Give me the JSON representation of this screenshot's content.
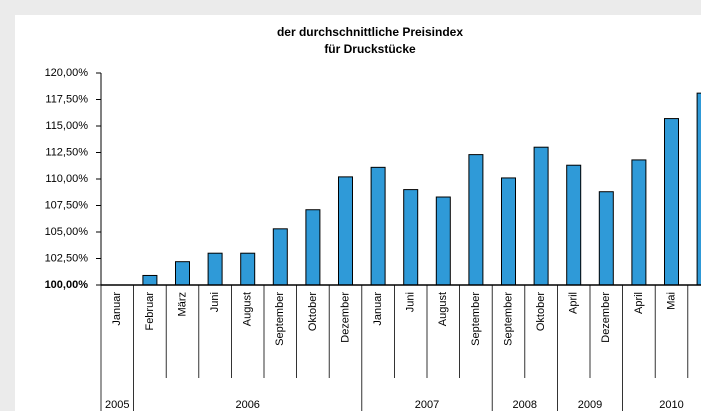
{
  "chart_data": {
    "type": "bar",
    "title": [
      "der durchschnittliche Preisindex",
      "für Druckstücke"
    ],
    "categories": [
      "Januar",
      "Februar",
      "März",
      "Juni",
      "August",
      "September",
      "Oktober",
      "Dezember",
      "Januar",
      "Juni",
      "August",
      "September",
      "September",
      "Oktober",
      "April",
      "Dezember",
      "April",
      "Mai",
      null
    ],
    "years": [
      "2005",
      "2006",
      "2006",
      "2006",
      "2006",
      "2006",
      "2006",
      "2006",
      "2007",
      "2007",
      "2007",
      "2007",
      "2008",
      "2008",
      "2009",
      "2009",
      "2010",
      "2010",
      "2010"
    ],
    "values": [
      100,
      100.9,
      102.2,
      103.0,
      103.0,
      105.3,
      107.1,
      110.2,
      111.1,
      109.0,
      108.3,
      112.3,
      110.1,
      113.0,
      111.3,
      108.8,
      111.8,
      115.7,
      118.1
    ],
    "color": "#2f9ad8",
    "ylim": [
      100,
      120
    ],
    "yticks": [
      {
        "value": 100,
        "label": "100,00%"
      },
      {
        "value": 102.5,
        "label": "102,50%"
      },
      {
        "value": 105,
        "label": "105,00%"
      },
      {
        "value": 107.5,
        "label": "107,50%"
      },
      {
        "value": 110,
        "label": "110,00%"
      },
      {
        "value": 112.5,
        "label": "112,50%"
      },
      {
        "value": 115,
        "label": "115,00%"
      },
      {
        "value": 117.5,
        "label": "117,50%"
      },
      {
        "value": 120,
        "label": "120,00%"
      }
    ]
  }
}
